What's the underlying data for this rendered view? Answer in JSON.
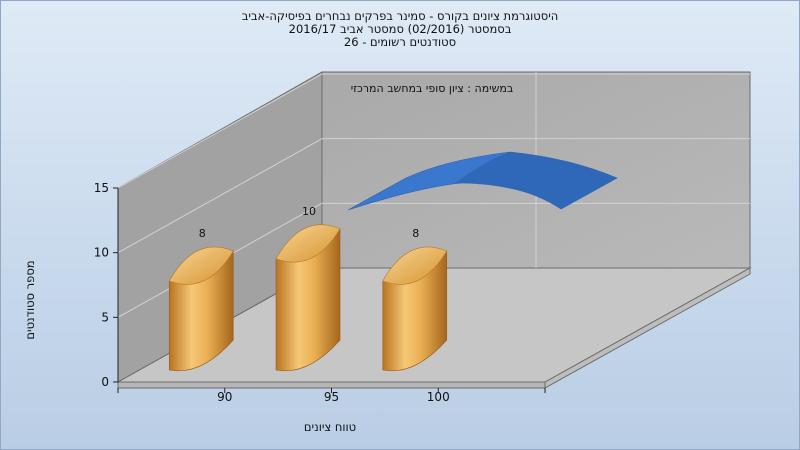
{
  "chart": {
    "title_lines": [
      "היסטוגרמת ציונים בקורס - סמינר בפרקים נבחרים בפיסיקה-אביב",
      "בסמסטר (02/2016) סמסטר אביב 2016/17",
      "סטודנטים רשומים - 26"
    ],
    "annotation": "במשימה : ציון סופי במחשב המרכזי"
  },
  "chart_data": {
    "type": "bar",
    "title": "היסטוגרמת ציונים בקורס - סמינר בפרקים נבחרים בפיסיקה-אביב",
    "subtitle": "בסמסטר (02/2016) סמסטר אביב 2016/17 | סטודנטים רשומים - 26",
    "xlabel": "טווח ציונים",
    "ylabel": "מספר סטודנטים",
    "categories": [
      "90",
      "95",
      "100"
    ],
    "values": [
      8,
      10,
      8
    ],
    "data_labels": [
      "8",
      "10",
      "8"
    ],
    "ylim": [
      0,
      15
    ],
    "yticks": [
      0,
      5,
      10,
      15
    ],
    "grid": true,
    "bar_color": "#e3a542",
    "curve_color": "#3a78cf"
  }
}
